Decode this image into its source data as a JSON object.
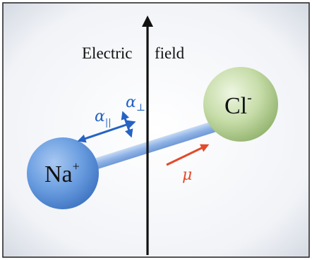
{
  "diagram": {
    "field_label_left": "Electric",
    "field_label_right": "field",
    "cation": {
      "symbol": "Na",
      "charge": "+"
    },
    "anion": {
      "symbol": "Cl",
      "charge": "-"
    },
    "alpha_parallel": {
      "symbol": "α",
      "subscript": "||"
    },
    "alpha_perpendicular": {
      "symbol": "α",
      "subscript": "⊥"
    },
    "dipole": {
      "symbol": "μ"
    },
    "colors": {
      "background_edge": "#d9dde6",
      "background_center": "#ffffff",
      "frame": "#2b2b2b",
      "field_arrow": "#111111",
      "cation_fill": "#6b9ee0",
      "anion_fill": "#c6dca8",
      "bond": "#9cbce8",
      "polarizability_arrow": "#2563c4",
      "dipole_arrow": "#e24a2c",
      "text": "#111111"
    }
  }
}
